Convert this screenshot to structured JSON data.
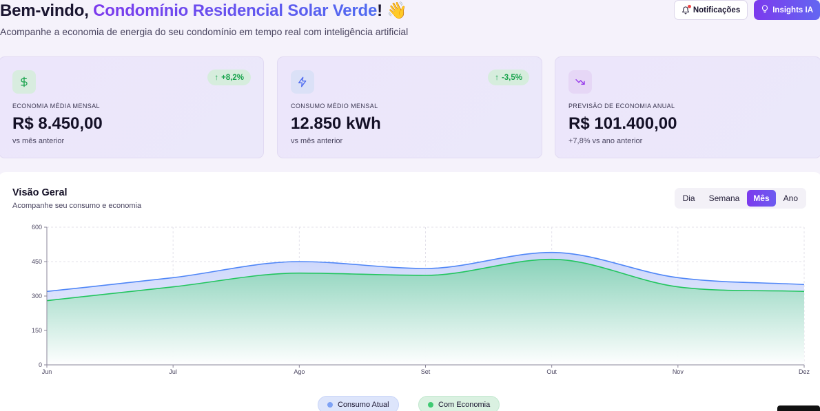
{
  "header": {
    "title_prefix": "Bem-vindo, ",
    "title_accent": "Condomínio Residencial Solar Verde",
    "title_suffix": "! 👋",
    "subtitle": "Acompanhe a economia de energia do seu condomínio em tempo real com inteligência artificial",
    "notifications_label": "Notificações",
    "insights_label": "Insights IA"
  },
  "cards": [
    {
      "icon": "dollar-icon",
      "badge": "+8,2%",
      "label": "ECONOMIA MÉDIA MENSAL",
      "value": "R$ 8.450,00",
      "sub": "vs mês anterior"
    },
    {
      "icon": "lightning-icon",
      "badge": "-3,5%",
      "label": "CONSUMO MÉDIO MENSAL",
      "value": "12.850 kWh",
      "sub": "vs mês anterior"
    },
    {
      "icon": "trending-down-icon",
      "label": "PREVISÃO DE ECONOMIA ANUAL",
      "value": "R$ 101.400,00",
      "sub": "+7,8% vs ano anterior"
    }
  ],
  "overview": {
    "title": "Visão Geral",
    "subtitle": "Acompanhe seu consumo e economia",
    "periods": [
      "Dia",
      "Semana",
      "Mês",
      "Ano"
    ],
    "active_period": "Mês"
  },
  "colors": {
    "accent": "#7c3aed",
    "consumo": "#4f86f7",
    "economia": "#22c55e",
    "badge_green": "#18a34c"
  },
  "chart_data": {
    "type": "area",
    "x": [
      "Jun",
      "Jul",
      "Ago",
      "Set",
      "Out",
      "Nov",
      "Dez"
    ],
    "ylim": [
      0,
      600
    ],
    "yticks": [
      0,
      150,
      300,
      450,
      600
    ],
    "grid": true,
    "legend_placement": "bottom",
    "series": [
      {
        "name": "Consumo Atual",
        "values": [
          320,
          380,
          450,
          420,
          490,
          380,
          350
        ]
      },
      {
        "name": "Com Economia",
        "values": [
          280,
          340,
          400,
          390,
          460,
          340,
          320
        ]
      }
    ]
  }
}
